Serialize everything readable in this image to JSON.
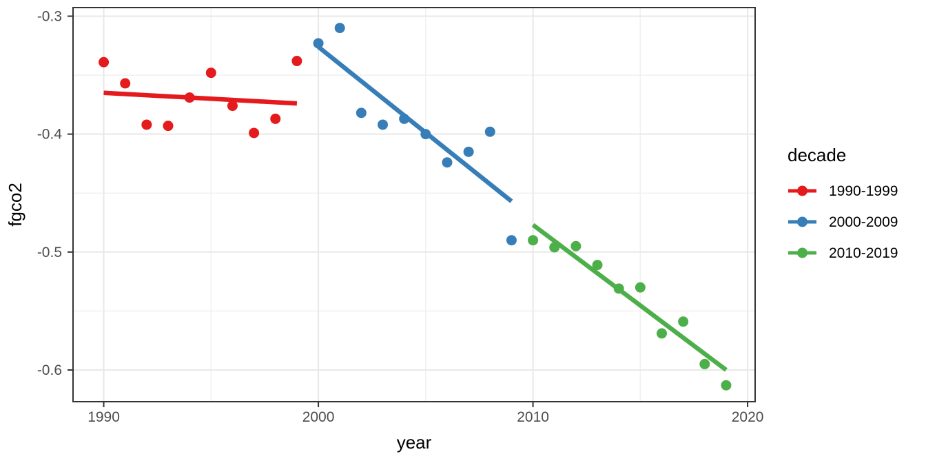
{
  "chart_data": {
    "type": "scatter",
    "title": "",
    "xlabel": "year",
    "ylabel": "fgco2",
    "xlim": [
      1988.57,
      2020.35
    ],
    "ylim": [
      -0.6269,
      -0.2927
    ],
    "grid": true,
    "x_ticks_major": [
      1990,
      2000,
      2010,
      2020
    ],
    "x_tick_labels": [
      "1990",
      "2000",
      "2010",
      "2020"
    ],
    "x_ticks_minor": [
      1995,
      2005,
      2015
    ],
    "y_ticks_major": [
      -0.3,
      -0.4,
      -0.5,
      -0.6
    ],
    "y_tick_labels": [
      "-0.3",
      "-0.4",
      "-0.5",
      "-0.6"
    ],
    "y_ticks_minor": [
      -0.35,
      -0.45,
      -0.55
    ],
    "legend": {
      "title": "decade",
      "position": "right",
      "entries": [
        {
          "label": "1990-1999",
          "color": "#E41A1C"
        },
        {
          "label": "2000-2009",
          "color": "#377EB8"
        },
        {
          "label": "2010-2019",
          "color": "#4DAF4A"
        }
      ]
    },
    "series": [
      {
        "name": "1990-1999",
        "color": "#E41A1C",
        "x": [
          1990,
          1991,
          1992,
          1993,
          1994,
          1995,
          1996,
          1997,
          1998,
          1999
        ],
        "y": [
          -0.339,
          -0.357,
          -0.392,
          -0.393,
          -0.369,
          -0.348,
          -0.376,
          -0.399,
          -0.387,
          -0.338
        ],
        "trend": {
          "x1": 1990,
          "y1": -0.365,
          "x2": 1999,
          "y2": -0.374
        }
      },
      {
        "name": "2000-2009",
        "color": "#377EB8",
        "x": [
          2000,
          2001,
          2002,
          2003,
          2004,
          2005,
          2006,
          2007,
          2008,
          2009
        ],
        "y": [
          -0.323,
          -0.31,
          -0.382,
          -0.392,
          -0.387,
          -0.4,
          -0.424,
          -0.415,
          -0.398,
          -0.49
        ],
        "trend": {
          "x1": 2000,
          "y1": -0.326,
          "x2": 2009,
          "y2": -0.457
        }
      },
      {
        "name": "2010-2019",
        "color": "#4DAF4A",
        "x": [
          2010,
          2011,
          2012,
          2013,
          2014,
          2015,
          2016,
          2017,
          2018,
          2019
        ],
        "y": [
          -0.49,
          -0.496,
          -0.495,
          -0.511,
          -0.531,
          -0.53,
          -0.569,
          -0.559,
          -0.595,
          -0.613
        ],
        "trend": {
          "x1": 2010,
          "y1": -0.477,
          "x2": 2019,
          "y2": -0.6
        }
      }
    ],
    "theme": {
      "panel_background": "#FFFFFF",
      "panel_border": "#333333",
      "grid_major": "#E8E8E8",
      "grid_minor": "#F0F0F0",
      "tick_mark": "#333333",
      "tick_text": "#4D4D4D"
    }
  }
}
